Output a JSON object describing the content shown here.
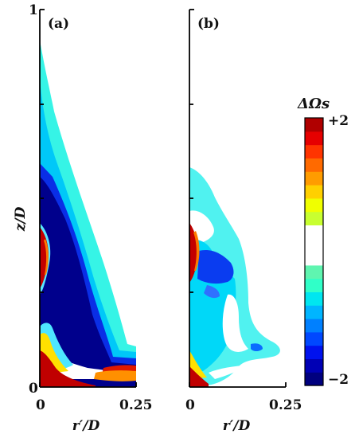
{
  "chart_data": {
    "type": "heatmap",
    "panels": [
      {
        "label": "(a)"
      },
      {
        "label": "(b)"
      }
    ],
    "xlabel": "r′/D",
    "ylabel": "z/D",
    "x_ticks": [
      "0",
      "0.25"
    ],
    "y_ticks": [
      "0",
      "1"
    ],
    "xlim": [
      0,
      0.25
    ],
    "ylim": [
      0,
      1
    ],
    "colorbar": {
      "title": "ΔΩs",
      "max_label": "+2",
      "min_label": "−2",
      "range": [
        -2,
        2
      ],
      "levels": 20,
      "colors": [
        "#00007f",
        "#0000b5",
        "#0012ee",
        "#0048ff",
        "#0080ff",
        "#00b5ff",
        "#00e6f0",
        "#30ffc8",
        "#5ff5b0",
        "#ffffff",
        "#ffffff",
        "#ffffff",
        "#c8ff30",
        "#f0ff00",
        "#ffd000",
        "#ff9c00",
        "#ff6a00",
        "#ff3400",
        "#e60000",
        "#b00000"
      ]
    }
  }
}
